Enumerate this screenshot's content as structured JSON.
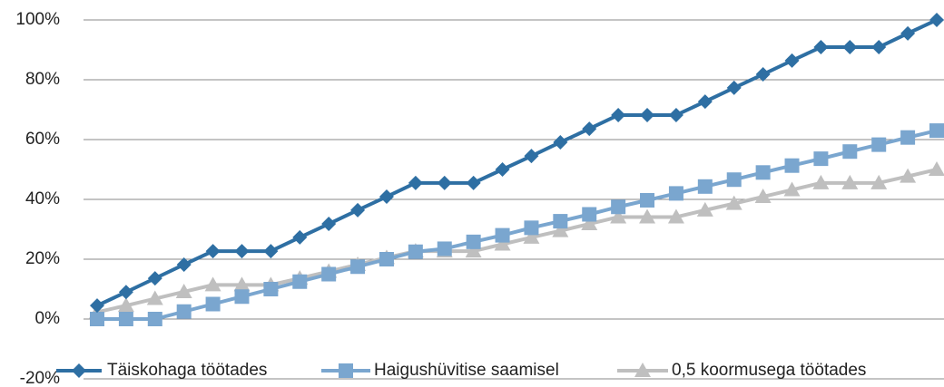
{
  "chart_data": {
    "type": "line",
    "categories": [
      null,
      null,
      null,
      null,
      null,
      null,
      null,
      null,
      null,
      null,
      null,
      null,
      null,
      null,
      null,
      null,
      null,
      null,
      null,
      null,
      null,
      null,
      null,
      null,
      null,
      null,
      null,
      null,
      null,
      null
    ],
    "series": [
      {
        "name": "Täiskohaga töötades",
        "color": "#2e6fa3",
        "marker": "diamond",
        "values": [
          4.5,
          9,
          13.6,
          18.2,
          22.7,
          22.7,
          22.7,
          27.3,
          31.8,
          36.4,
          40.9,
          45.5,
          45.5,
          45.5,
          50,
          54.5,
          59.1,
          63.6,
          68.2,
          68.2,
          68.2,
          72.7,
          77.3,
          81.8,
          86.4,
          90.9,
          90.9,
          90.9,
          95.5,
          100
        ]
      },
      {
        "name": "Haigushüvitise saamisel",
        "color": "#7aa6cf",
        "marker": "square",
        "values": [
          0,
          0,
          0,
          2.5,
          5,
          7.5,
          10,
          12.5,
          15,
          17.5,
          20,
          22.5,
          23.5,
          25.8,
          28,
          30.5,
          32.7,
          35,
          37.5,
          39.7,
          42,
          44.3,
          46.6,
          49,
          51.3,
          53.6,
          56,
          58.3,
          60.7,
          63
        ]
      },
      {
        "name": "0,5 koormusega töötades",
        "color": "#bfbfbf",
        "marker": "triangle",
        "values": [
          2.3,
          4.5,
          6.8,
          9.1,
          11.4,
          11.4,
          11.4,
          13.6,
          15.9,
          18.2,
          20.5,
          22.7,
          22.7,
          22.7,
          25,
          27.3,
          29.5,
          31.8,
          34.1,
          34.1,
          34.1,
          36.4,
          38.6,
          40.9,
          43.2,
          45.5,
          45.5,
          45.5,
          47.7,
          50
        ]
      }
    ],
    "ylim": [
      -20,
      100
    ],
    "yticks": [
      {
        "value": -20,
        "label": "-20%"
      },
      {
        "value": 0,
        "label": "0%"
      },
      {
        "value": 20,
        "label": "20%"
      },
      {
        "value": 40,
        "label": "40%"
      },
      {
        "value": 60,
        "label": "60%"
      },
      {
        "value": 80,
        "label": "80%"
      },
      {
        "value": 100,
        "label": "100%"
      }
    ],
    "grid": true,
    "legend": "bottom"
  }
}
